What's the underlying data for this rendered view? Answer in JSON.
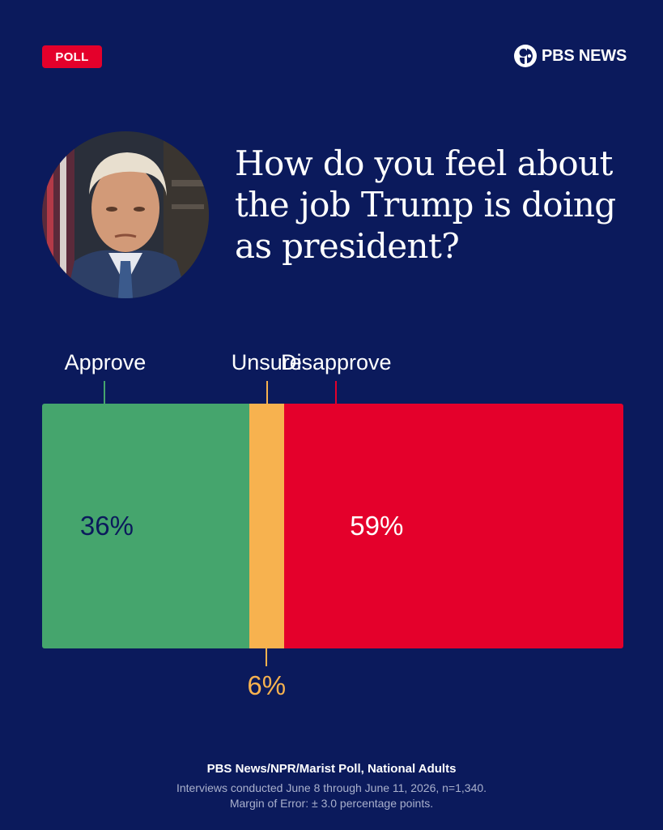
{
  "header": {
    "badge_label": "POLL",
    "brand": "PBS NEWS",
    "badge_color": "#e4002b",
    "background_color": "#0b1a5c"
  },
  "portrait": {
    "icon": "portrait-photo-icon"
  },
  "chart_data": {
    "type": "bar",
    "layout": "stacked-horizontal",
    "title": "How do you feel about the job Trump is doing as president?",
    "categories": [
      "Approve",
      "Unsure",
      "Disapprove"
    ],
    "values": [
      36,
      6,
      59
    ],
    "value_labels": [
      "36%",
      "6%",
      "59%"
    ],
    "colors": [
      "#45a56d",
      "#f7b24f",
      "#e4002b"
    ],
    "label_colors": [
      "#0b1a5c",
      "#f7b24f",
      "#ffffff"
    ],
    "grid": false,
    "legend": "none"
  },
  "footer": {
    "source": "PBS News/NPR/Marist Poll, National Adults",
    "interviews": "Interviews conducted June 8 through June 11, 2026, n=1,340.",
    "margin": "Margin of Error: ± 3.0 percentage points."
  }
}
